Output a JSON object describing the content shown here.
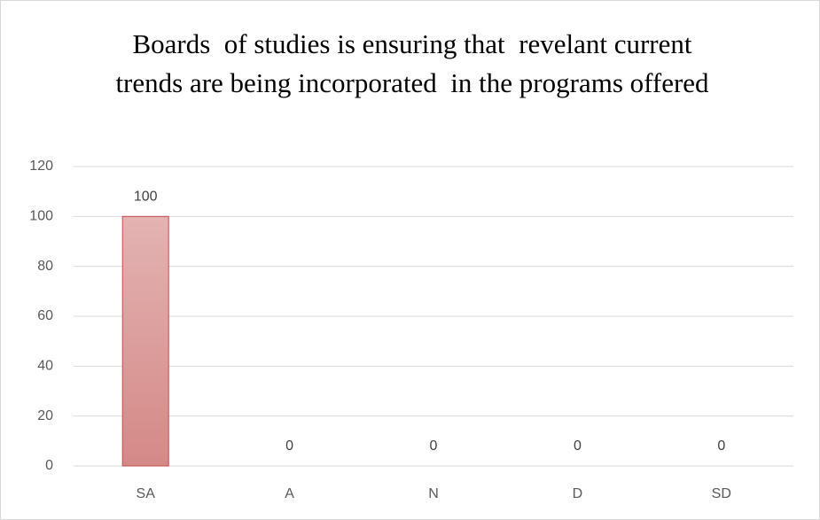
{
  "chart_data": {
    "type": "bar",
    "title": "Boards  of studies is ensuring that  revelant current trends are being incorporated  in the programs offered",
    "categories": [
      "SA",
      "A",
      "N",
      "D",
      "SD"
    ],
    "values": [
      100,
      0,
      0,
      0,
      0
    ],
    "color": "#d99594",
    "ylim": [
      0,
      120
    ],
    "yticks": [
      0,
      20,
      40,
      60,
      80,
      100,
      120
    ],
    "grid": true
  }
}
